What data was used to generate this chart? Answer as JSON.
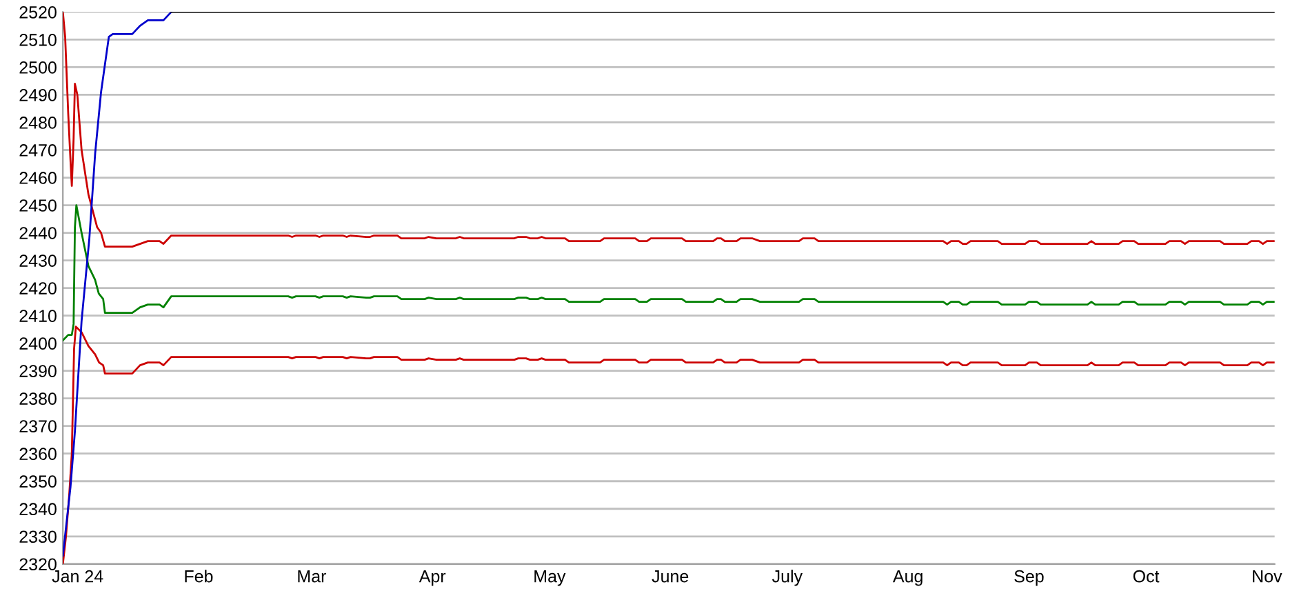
{
  "chart_data": {
    "type": "line",
    "xlim": [
      "2023-12-28T05:00",
      "2024-11-03"
    ],
    "ylim": [
      2320,
      2520
    ],
    "yticks": [
      2320,
      2330,
      2340,
      2350,
      2360,
      2370,
      2380,
      2390,
      2400,
      2410,
      2420,
      2430,
      2440,
      2450,
      2460,
      2470,
      2480,
      2490,
      2500,
      2510,
      2520
    ],
    "xticks": [
      {
        "value": "2024-01-01",
        "label": "Jan 24"
      },
      {
        "value": "2024-02-01",
        "label": "Feb"
      },
      {
        "value": "2024-03-01",
        "label": "Mar"
      },
      {
        "value": "2024-04-01",
        "label": "Apr"
      },
      {
        "value": "2024-05-01",
        "label": "May"
      },
      {
        "value": "2024-06-01",
        "label": "June"
      },
      {
        "value": "2024-07-01",
        "label": "July"
      },
      {
        "value": "2024-08-01",
        "label": "Aug"
      },
      {
        "value": "2024-09-01",
        "label": "Sep"
      },
      {
        "value": "2024-10-01",
        "label": "Oct"
      },
      {
        "value": "2024-11-01",
        "label": "Nov"
      }
    ],
    "grid": "y",
    "marker": "none",
    "line_style": "solid",
    "series": [
      {
        "color": "#000000",
        "x": [
          "2024-01-25",
          "2024-11-03"
        ],
        "values": [
          2520,
          2520
        ]
      },
      {
        "color": "#0000cc",
        "x": [
          "2023-12-28T05:00",
          "2023-12-30T04:00",
          "2023-12-31T07:00",
          "2024-01-02",
          "2024-01-04",
          "2024-01-05T12:00",
          "2024-01-07",
          "2024-01-09",
          "2024-01-10",
          "2024-01-15",
          "2024-01-17",
          "2024-01-19",
          "2024-01-23",
          "2024-01-25"
        ],
        "values": [
          2323,
          2348,
          2368,
          2408,
          2438,
          2469,
          2491,
          2511,
          2512,
          2512,
          2515,
          2517,
          2517,
          2520
        ]
      },
      {
        "color": "#cc0000",
        "x": [
          "2023-12-28T05:00",
          "2023-12-28T19:00",
          "2023-12-29T14:00",
          "2023-12-30T04:00",
          "2023-12-30T12:00",
          "2023-12-30T23:00",
          "2023-12-31T07:00",
          "2023-12-31T22:00",
          "2024-01-02",
          "2024-01-03T18:00",
          "2024-01-06",
          "2024-01-07",
          "2024-01-08",
          "2024-01-15",
          "2024-01-17",
          "2024-01-19",
          "2024-01-22",
          "2024-01-23",
          "2024-01-25",
          "2024-02-24",
          "2024-02-25",
          "2024-02-26",
          "2024-03-02",
          "2024-03-03",
          "2024-03-04",
          "2024-03-09",
          "2024-03-10",
          "2024-03-11",
          "2024-03-15",
          "2024-03-16",
          "2024-03-17",
          "2024-03-23",
          "2024-03-24",
          "2024-03-30",
          "2024-03-31",
          "2024-04-02",
          "2024-04-07",
          "2024-04-08",
          "2024-04-09",
          "2024-04-22",
          "2024-04-23",
          "2024-04-25",
          "2024-04-26",
          "2024-04-28",
          "2024-04-29",
          "2024-04-30",
          "2024-05-05",
          "2024-05-06",
          "2024-05-14",
          "2024-05-15",
          "2024-05-23",
          "2024-05-24",
          "2024-05-26",
          "2024-05-27",
          "2024-06-04",
          "2024-06-05",
          "2024-06-12",
          "2024-06-13",
          "2024-06-14",
          "2024-06-15",
          "2024-06-18",
          "2024-06-19",
          "2024-06-22",
          "2024-06-24",
          "2024-07-04",
          "2024-07-05",
          "2024-07-08",
          "2024-07-09",
          "2024-08-10",
          "2024-08-11",
          "2024-08-12",
          "2024-08-14",
          "2024-08-15",
          "2024-08-16",
          "2024-08-17",
          "2024-08-24",
          "2024-08-25",
          "2024-08-31",
          "2024-09-01",
          "2024-09-03",
          "2024-09-04",
          "2024-09-16",
          "2024-09-17",
          "2024-09-18",
          "2024-09-24",
          "2024-09-25",
          "2024-09-28",
          "2024-09-29",
          "2024-10-06",
          "2024-10-07",
          "2024-10-10",
          "2024-10-11",
          "2024-10-12",
          "2024-10-20",
          "2024-10-21",
          "2024-10-27",
          "2024-10-28",
          "2024-10-30",
          "2024-10-31",
          "2024-11-01",
          "2024-11-03"
        ],
        "values": [
          2520,
          2511,
          2483,
          2466,
          2457,
          2474,
          2494,
          2490,
          2470,
          2454,
          2442,
          2440,
          2435,
          2435,
          2436,
          2437,
          2437,
          2436,
          2439,
          2439,
          2438.5,
          2439,
          2439,
          2438.5,
          2439,
          2439,
          2438.5,
          2439,
          2438.5,
          2438.5,
          2439,
          2439,
          2438,
          2438,
          2438.5,
          2438,
          2438,
          2438.5,
          2438,
          2438,
          2438.5,
          2438.5,
          2438,
          2438,
          2438.5,
          2438,
          2438,
          2437,
          2437,
          2438,
          2438,
          2437,
          2437,
          2438,
          2438,
          2437,
          2437,
          2438,
          2438,
          2437,
          2437,
          2438,
          2438,
          2437,
          2437,
          2438,
          2438,
          2437,
          2437,
          2436,
          2437,
          2437,
          2436,
          2436,
          2437,
          2437,
          2436,
          2436,
          2437,
          2437,
          2436,
          2436,
          2437,
          2436,
          2436,
          2437,
          2437,
          2436,
          2436,
          2437,
          2437,
          2436,
          2437,
          2437,
          2436,
          2436,
          2437,
          2437,
          2436,
          2437,
          2437
        ]
      },
      {
        "color": "#008000",
        "x": [
          "2023-12-28T05:00",
          "2023-12-29T14:00",
          "2023-12-30T12:00",
          "2023-12-30T23:00",
          "2023-12-31T07:00",
          "2023-12-31T16:00",
          "2024-01-02",
          "2024-01-03T18:00",
          "2024-01-05T11:00",
          "2024-01-06T10:00",
          "2024-01-07T13:00",
          "2024-01-08",
          "2024-01-15",
          "2024-01-17",
          "2024-01-19",
          "2024-01-22",
          "2024-01-23",
          "2024-01-25",
          "2024-02-24",
          "2024-02-25",
          "2024-02-26",
          "2024-03-02",
          "2024-03-03",
          "2024-03-04",
          "2024-03-09",
          "2024-03-10",
          "2024-03-11",
          "2024-03-15",
          "2024-03-16",
          "2024-03-17",
          "2024-03-23",
          "2024-03-24",
          "2024-03-30",
          "2024-03-31",
          "2024-04-02",
          "2024-04-07",
          "2024-04-08",
          "2024-04-09",
          "2024-04-22",
          "2024-04-23",
          "2024-04-25",
          "2024-04-26",
          "2024-04-28",
          "2024-04-29",
          "2024-04-30",
          "2024-05-05",
          "2024-05-06",
          "2024-05-14",
          "2024-05-15",
          "2024-05-23",
          "2024-05-24",
          "2024-05-26",
          "2024-05-27",
          "2024-06-04",
          "2024-06-05",
          "2024-06-12",
          "2024-06-13",
          "2024-06-14",
          "2024-06-15",
          "2024-06-18",
          "2024-06-19",
          "2024-06-22",
          "2024-06-24",
          "2024-07-04",
          "2024-07-05",
          "2024-07-08",
          "2024-07-09",
          "2024-08-10",
          "2024-08-11",
          "2024-08-12",
          "2024-08-14",
          "2024-08-15",
          "2024-08-16",
          "2024-08-17",
          "2024-08-24",
          "2024-08-25",
          "2024-08-31",
          "2024-09-01",
          "2024-09-03",
          "2024-09-04",
          "2024-09-16",
          "2024-09-17",
          "2024-09-18",
          "2024-09-24",
          "2024-09-25",
          "2024-09-28",
          "2024-09-29",
          "2024-10-06",
          "2024-10-07",
          "2024-10-10",
          "2024-10-11",
          "2024-10-12",
          "2024-10-20",
          "2024-10-21",
          "2024-10-27",
          "2024-10-28",
          "2024-10-30",
          "2024-10-31",
          "2024-11-01",
          "2024-11-03"
        ],
        "values": [
          2401,
          2403,
          2403,
          2407,
          2442,
          2450,
          2440,
          2428,
          2423,
          2418,
          2416,
          2411,
          2411,
          2413,
          2414,
          2414,
          2413,
          2417,
          2417,
          2416.5,
          2417,
          2417,
          2416.5,
          2417,
          2417,
          2416.5,
          2417,
          2416.5,
          2416.5,
          2417,
          2417,
          2416,
          2416,
          2416.5,
          2416,
          2416,
          2416.5,
          2416,
          2416,
          2416.5,
          2416.5,
          2416,
          2416,
          2416.5,
          2416,
          2416,
          2415,
          2415,
          2416,
          2416,
          2415,
          2415,
          2416,
          2416,
          2415,
          2415,
          2416,
          2416,
          2415,
          2415,
          2416,
          2416,
          2415,
          2415,
          2416,
          2416,
          2415,
          2415,
          2414,
          2415,
          2415,
          2414,
          2414,
          2415,
          2415,
          2414,
          2414,
          2415,
          2415,
          2414,
          2414,
          2415,
          2414,
          2414,
          2415,
          2415,
          2414,
          2414,
          2415,
          2415,
          2414,
          2415,
          2415,
          2414,
          2414,
          2415,
          2415,
          2414,
          2415,
          2415
        ]
      },
      {
        "color": "#cc0000",
        "x": [
          "2023-12-28T05:00",
          "2023-12-29T00:00",
          "2023-12-29T20:00",
          "2023-12-30T12:00",
          "2023-12-31T02:00",
          "2023-12-31T13:00",
          "2024-01-02",
          "2024-01-03T18:00",
          "2024-01-05T11:00",
          "2024-01-06T12:00",
          "2024-01-07T13:00",
          "2024-01-08",
          "2024-01-15",
          "2024-01-17",
          "2024-01-19",
          "2024-01-22",
          "2024-01-23",
          "2024-01-25",
          "2024-02-24",
          "2024-02-25",
          "2024-02-26",
          "2024-03-02",
          "2024-03-03",
          "2024-03-04",
          "2024-03-09",
          "2024-03-10",
          "2024-03-11",
          "2024-03-15",
          "2024-03-16",
          "2024-03-17",
          "2024-03-23",
          "2024-03-24",
          "2024-03-30",
          "2024-03-31",
          "2024-04-02",
          "2024-04-07",
          "2024-04-08",
          "2024-04-09",
          "2024-04-22",
          "2024-04-23",
          "2024-04-25",
          "2024-04-26",
          "2024-04-28",
          "2024-04-29",
          "2024-04-30",
          "2024-05-05",
          "2024-05-06",
          "2024-05-14",
          "2024-05-15",
          "2024-05-23",
          "2024-05-24",
          "2024-05-26",
          "2024-05-27",
          "2024-06-04",
          "2024-06-05",
          "2024-06-12",
          "2024-06-13",
          "2024-06-14",
          "2024-06-15",
          "2024-06-18",
          "2024-06-19",
          "2024-06-22",
          "2024-06-24",
          "2024-07-04",
          "2024-07-05",
          "2024-07-08",
          "2024-07-09",
          "2024-08-10",
          "2024-08-11",
          "2024-08-12",
          "2024-08-14",
          "2024-08-15",
          "2024-08-16",
          "2024-08-17",
          "2024-08-24",
          "2024-08-25",
          "2024-08-31",
          "2024-09-01",
          "2024-09-03",
          "2024-09-04",
          "2024-09-16",
          "2024-09-17",
          "2024-09-18",
          "2024-09-24",
          "2024-09-25",
          "2024-09-28",
          "2024-09-29",
          "2024-10-06",
          "2024-10-07",
          "2024-10-10",
          "2024-10-11",
          "2024-10-12",
          "2024-10-20",
          "2024-10-21",
          "2024-10-27",
          "2024-10-28",
          "2024-10-30",
          "2024-10-31",
          "2024-11-01",
          "2024-11-03"
        ],
        "values": [
          2320,
          2330,
          2345,
          2360,
          2398,
          2406,
          2404,
          2399,
          2396,
          2393,
          2392,
          2389,
          2389,
          2392,
          2393,
          2393,
          2392,
          2395,
          2395,
          2394.5,
          2395,
          2395,
          2394.5,
          2395,
          2395,
          2394.5,
          2395,
          2394.5,
          2394.5,
          2395,
          2395,
          2394,
          2394,
          2394.5,
          2394,
          2394,
          2394.5,
          2394,
          2394,
          2394.5,
          2394.5,
          2394,
          2394,
          2394.5,
          2394,
          2394,
          2393,
          2393,
          2394,
          2394,
          2393,
          2393,
          2394,
          2394,
          2393,
          2393,
          2394,
          2394,
          2393,
          2393,
          2394,
          2394,
          2393,
          2393,
          2394,
          2394,
          2393,
          2393,
          2392,
          2393,
          2393,
          2392,
          2392,
          2393,
          2393,
          2392,
          2392,
          2393,
          2393,
          2392,
          2392,
          2393,
          2392,
          2392,
          2393,
          2393,
          2392,
          2392,
          2393,
          2393,
          2392,
          2393,
          2393,
          2392,
          2392,
          2393,
          2393,
          2392,
          2393,
          2393
        ]
      }
    ]
  }
}
